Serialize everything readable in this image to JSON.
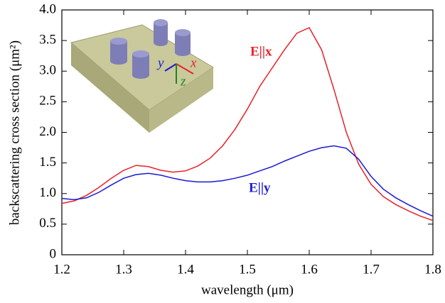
{
  "chart_data": {
    "type": "line",
    "xlabel": "wavelength (μm)",
    "ylabel": "backscattering cross section (μm²)",
    "x": [
      1.2,
      1.22,
      1.24,
      1.26,
      1.28,
      1.3,
      1.32,
      1.34,
      1.36,
      1.38,
      1.4,
      1.42,
      1.44,
      1.46,
      1.48,
      1.5,
      1.52,
      1.54,
      1.56,
      1.58,
      1.6,
      1.62,
      1.64,
      1.66,
      1.68,
      1.7,
      1.72,
      1.74,
      1.76,
      1.78,
      1.8
    ],
    "series": [
      {
        "name": "E||x",
        "color": "#e8222a",
        "values": [
          0.84,
          0.88,
          0.97,
          1.1,
          1.25,
          1.38,
          1.46,
          1.44,
          1.38,
          1.35,
          1.37,
          1.45,
          1.58,
          1.78,
          2.05,
          2.38,
          2.75,
          3.05,
          3.35,
          3.62,
          3.71,
          3.35,
          2.7,
          2.0,
          1.48,
          1.15,
          0.95,
          0.82,
          0.72,
          0.63,
          0.56
        ]
      },
      {
        "name": "E||y",
        "color": "#1a1ad0",
        "values": [
          0.92,
          0.9,
          0.93,
          1.02,
          1.14,
          1.25,
          1.31,
          1.33,
          1.3,
          1.25,
          1.21,
          1.19,
          1.19,
          1.21,
          1.25,
          1.3,
          1.37,
          1.44,
          1.53,
          1.61,
          1.69,
          1.75,
          1.78,
          1.74,
          1.56,
          1.28,
          1.07,
          0.93,
          0.82,
          0.72,
          0.63
        ]
      }
    ],
    "xlim": [
      1.2,
      1.8
    ],
    "xticks": [
      1.2,
      1.3,
      1.4,
      1.5,
      1.6,
      1.7,
      1.8
    ],
    "ylim": [
      0,
      4
    ],
    "yticks": [
      0,
      {
        "value": 0.5,
        "label": "0.5"
      },
      {
        "value": 1,
        "label": "1.0"
      },
      {
        "value": 1.5,
        "label": "1.5"
      },
      {
        "value": 2,
        "label": "2.0"
      },
      {
        "value": 2.5,
        "label": "2.5"
      },
      {
        "value": 3,
        "label": "3.0"
      },
      {
        "value": 3.5,
        "label": "3.5"
      },
      {
        "value": 4,
        "label": "4.0"
      }
    ],
    "inset_axes": [
      "x",
      "y",
      "z"
    ]
  }
}
